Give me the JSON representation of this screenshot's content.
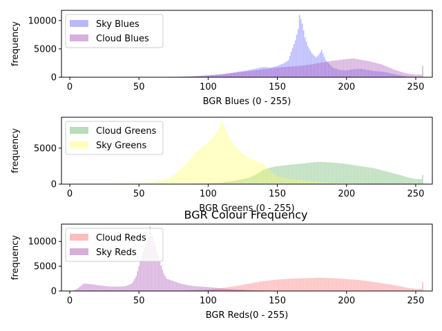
{
  "figure": {
    "title": "BGR Colour Frequency"
  },
  "chart_data": [
    {
      "type": "bar",
      "xlabel": "BGR Blues (0 - 255)",
      "ylabel": "frequency",
      "xlim": [
        -6,
        262
      ],
      "ylim": [
        0,
        11800
      ],
      "xticks": [
        0,
        50,
        100,
        150,
        200,
        250
      ],
      "yticks": [
        0,
        5000,
        10000
      ],
      "legend": "top-left",
      "series": [
        {
          "name": "Sky Blues",
          "color": "#4d4dff",
          "alpha": 0.4,
          "points": [
            [
              0,
              30
            ],
            [
              60,
              0
            ],
            [
              75,
              50
            ],
            [
              90,
              150
            ],
            [
              100,
              300
            ],
            [
              110,
              500
            ],
            [
              120,
              900
            ],
            [
              130,
              1300
            ],
            [
              140,
              1800
            ],
            [
              145,
              1700
            ],
            [
              150,
              2000
            ],
            [
              155,
              2500
            ],
            [
              158,
              3000
            ],
            [
              160,
              4500
            ],
            [
              163,
              6500
            ],
            [
              165,
              8500
            ],
            [
              166,
              11000
            ],
            [
              168,
              9500
            ],
            [
              170,
              7000
            ],
            [
              172,
              5500
            ],
            [
              175,
              4200
            ],
            [
              178,
              3500
            ],
            [
              180,
              4000
            ],
            [
              182,
              4800
            ],
            [
              185,
              3000
            ],
            [
              188,
              2200
            ],
            [
              190,
              1700
            ],
            [
              195,
              1300
            ],
            [
              200,
              1200
            ],
            [
              205,
              1400
            ],
            [
              210,
              1500
            ],
            [
              215,
              1300
            ],
            [
              220,
              1100
            ],
            [
              225,
              1000
            ],
            [
              230,
              800
            ],
            [
              235,
              500
            ],
            [
              240,
              300
            ],
            [
              245,
              120
            ],
            [
              250,
              50
            ],
            [
              255,
              0
            ]
          ]
        },
        {
          "name": "Cloud Blues",
          "color": "#9a38a8",
          "alpha": 0.4,
          "points": [
            [
              0,
              120
            ],
            [
              5,
              40
            ],
            [
              60,
              0
            ],
            [
              80,
              100
            ],
            [
              90,
              200
            ],
            [
              100,
              350
            ],
            [
              110,
              550
            ],
            [
              120,
              800
            ],
            [
              130,
              1100
            ],
            [
              140,
              1400
            ],
            [
              150,
              1700
            ],
            [
              160,
              1900
            ],
            [
              170,
              2100
            ],
            [
              180,
              2500
            ],
            [
              190,
              2900
            ],
            [
              200,
              3200
            ],
            [
              205,
              3300
            ],
            [
              210,
              3100
            ],
            [
              215,
              2900
            ],
            [
              220,
              2600
            ],
            [
              225,
              2300
            ],
            [
              230,
              1800
            ],
            [
              235,
              1300
            ],
            [
              240,
              900
            ],
            [
              245,
              600
            ],
            [
              250,
              450
            ],
            [
              254,
              450
            ],
            [
              255,
              2000
            ]
          ]
        }
      ]
    },
    {
      "type": "bar",
      "xlabel": "BGR Greens (0 - 255)",
      "ylabel": "frequency",
      "xlim": [
        -6,
        262
      ],
      "ylim": [
        0,
        9300
      ],
      "xticks": [
        0,
        50,
        100,
        150,
        200,
        250
      ],
      "yticks": [
        0,
        5000
      ],
      "legend": "top-left",
      "series": [
        {
          "name": "Cloud Greens",
          "color": "#4ea94e",
          "alpha": 0.4,
          "points": [
            [
              0,
              0
            ],
            [
              80,
              0
            ],
            [
              90,
              60
            ],
            [
              100,
              120
            ],
            [
              110,
              250
            ],
            [
              120,
              500
            ],
            [
              130,
              900
            ],
            [
              135,
              1400
            ],
            [
              140,
              2000
            ],
            [
              145,
              2300
            ],
            [
              150,
              2500
            ],
            [
              160,
              2700
            ],
            [
              170,
              2900
            ],
            [
              180,
              3100
            ],
            [
              190,
              3000
            ],
            [
              200,
              2800
            ],
            [
              210,
              2500
            ],
            [
              220,
              2200
            ],
            [
              230,
              1700
            ],
            [
              240,
              1200
            ],
            [
              245,
              900
            ],
            [
              250,
              700
            ],
            [
              254,
              700
            ],
            [
              255,
              1300
            ]
          ]
        },
        {
          "name": "Sky Greens",
          "color": "#ffff4d",
          "alpha": 0.4,
          "points": [
            [
              0,
              30
            ],
            [
              30,
              60
            ],
            [
              50,
              150
            ],
            [
              60,
              300
            ],
            [
              70,
              700
            ],
            [
              75,
              1200
            ],
            [
              80,
              2000
            ],
            [
              85,
              3000
            ],
            [
              90,
              4200
            ],
            [
              95,
              5000
            ],
            [
              100,
              5800
            ],
            [
              105,
              6800
            ],
            [
              108,
              7800
            ],
            [
              110,
              9000
            ],
            [
              112,
              8000
            ],
            [
              115,
              6500
            ],
            [
              120,
              5200
            ],
            [
              125,
              4200
            ],
            [
              130,
              3600
            ],
            [
              135,
              3200
            ],
            [
              140,
              2800
            ],
            [
              145,
              1800
            ],
            [
              150,
              1100
            ],
            [
              160,
              700
            ],
            [
              170,
              500
            ],
            [
              180,
              300
            ],
            [
              190,
              200
            ],
            [
              200,
              150
            ],
            [
              210,
              100
            ],
            [
              220,
              60
            ],
            [
              230,
              40
            ],
            [
              250,
              0
            ]
          ]
        }
      ]
    },
    {
      "type": "bar",
      "xlabel": "BGR Reds(0 - 255)",
      "ylabel": "frequency",
      "xlim": [
        -6,
        262
      ],
      "ylim": [
        0,
        13500
      ],
      "xticks": [
        0,
        50,
        100,
        150,
        200,
        250
      ],
      "yticks": [
        0,
        5000,
        10000
      ],
      "legend": "top-left",
      "series": [
        {
          "name": "Cloud Reds",
          "color": "#ff5a5a",
          "alpha": 0.4,
          "points": [
            [
              0,
              0
            ],
            [
              70,
              0
            ],
            [
              80,
              60
            ],
            [
              90,
              150
            ],
            [
              100,
              300
            ],
            [
              110,
              600
            ],
            [
              120,
              1000
            ],
            [
              130,
              1500
            ],
            [
              140,
              2000
            ],
            [
              150,
              2300
            ],
            [
              160,
              2500
            ],
            [
              170,
              2600
            ],
            [
              180,
              2700
            ],
            [
              190,
              2600
            ],
            [
              200,
              2400
            ],
            [
              210,
              2200
            ],
            [
              220,
              1800
            ],
            [
              230,
              1400
            ],
            [
              240,
              900
            ],
            [
              245,
              600
            ],
            [
              250,
              450
            ],
            [
              254,
              450
            ],
            [
              255,
              1800
            ]
          ]
        },
        {
          "name": "Sky Reds",
          "color": "#9a38a8",
          "alpha": 0.4,
          "points": [
            [
              0,
              0
            ],
            [
              3,
              100
            ],
            [
              5,
              400
            ],
            [
              8,
              1000
            ],
            [
              10,
              1500
            ],
            [
              15,
              1400
            ],
            [
              20,
              1200
            ],
            [
              25,
              1000
            ],
            [
              30,
              900
            ],
            [
              35,
              900
            ],
            [
              40,
              950
            ],
            [
              45,
              1500
            ],
            [
              48,
              3000
            ],
            [
              50,
              5000
            ],
            [
              52,
              7000
            ],
            [
              55,
              9500
            ],
            [
              57,
              11000
            ],
            [
              58,
              13000
            ],
            [
              60,
              11000
            ],
            [
              62,
              9000
            ],
            [
              65,
              6000
            ],
            [
              68,
              3500
            ],
            [
              70,
              2500
            ],
            [
              75,
              2000
            ],
            [
              80,
              1500
            ],
            [
              85,
              1200
            ],
            [
              90,
              1000
            ],
            [
              100,
              800
            ],
            [
              110,
              500
            ],
            [
              120,
              300
            ],
            [
              130,
              150
            ],
            [
              140,
              80
            ],
            [
              150,
              40
            ],
            [
              170,
              20
            ],
            [
              200,
              0
            ]
          ]
        }
      ]
    }
  ]
}
